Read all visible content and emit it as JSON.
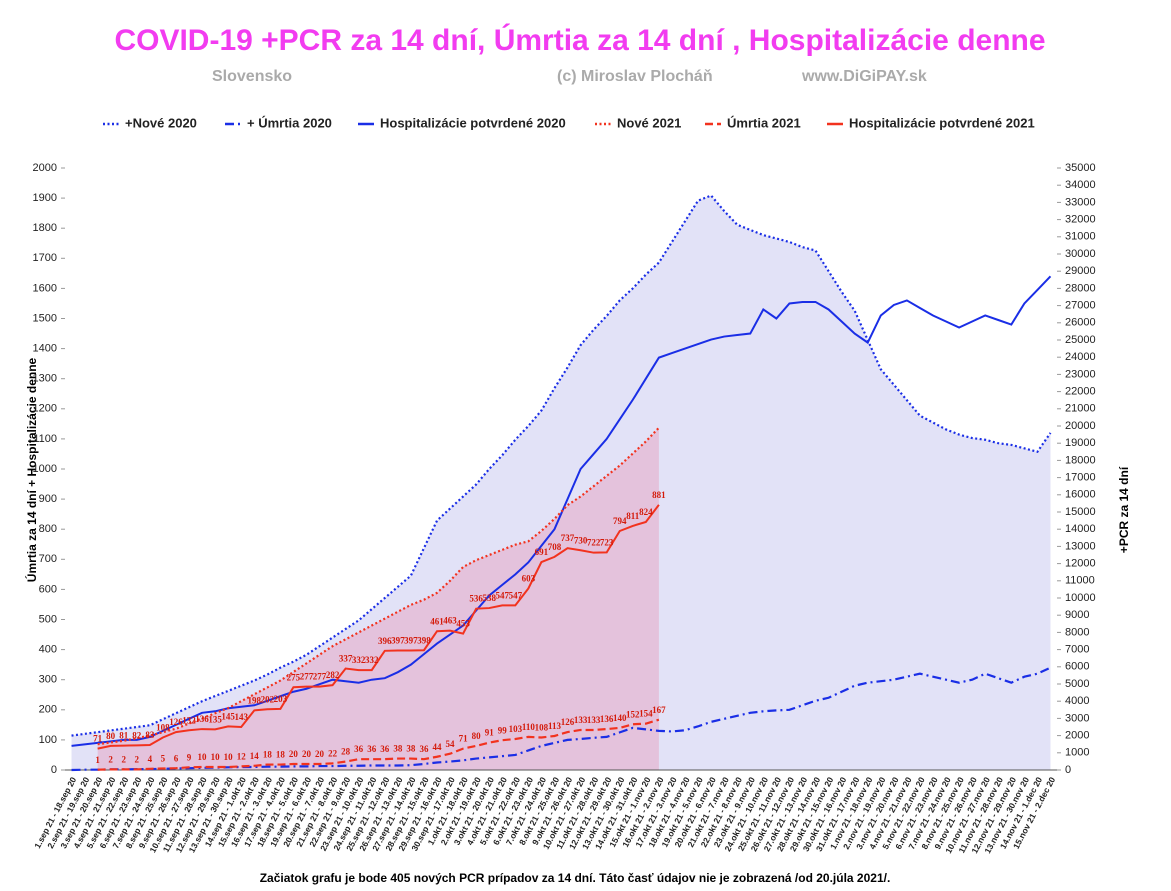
{
  "chart_data": {
    "type": "line",
    "title": "COVID-19   +PCR za 14 dní, Úmrtia za 14 dní , Hospitalizácie denne",
    "subtitles": [
      "Slovensko",
      "(c) Miroslav Plocháň",
      "www.DiGiPAY.sk"
    ],
    "ylabel": "Úmrtia za 14 dní + Hospitalizácie denne",
    "y2label": "+PCR za 14 dní",
    "note": "Začiatok grafu  je bode 405 nových PCR prípadov za 14 dní.  Táto časť údajov nie je zobrazená /od 20.júla 2021/.",
    "categories": [
      "1.sep 21 - 18.sep 20",
      "2.sep 21 - 19.sep 20",
      "3.sep 21 - 20.sep 20",
      "4.sep 21 - 21.sep 20",
      "5.sep 21 - 22.sep 20",
      "6.sep 21 - 23.sep 20",
      "7.sep 21 - 24.sep 20",
      "8.sep 21 - 25.sep 20",
      "9.sep 21 - 26.sep 20",
      "10.sep 21 - 27.sep 20",
      "11.sep 21 - 28.sep 20",
      "12.sep 21 - 29.sep 20",
      "13.sep 21 - 30.sep 20",
      "14.sep 21 - 1.okt 20",
      "15.sep 21 - 2.okt 20",
      "16.sep 21 - 3.okt 20",
      "17.sep 21 - 4.okt 20",
      "18.sep 21 - 5.okt 20",
      "19.sep 21 - 6.okt 20",
      "20.sep 21 - 7.okt 20",
      "21.sep 21 - 8.okt 20",
      "22.sep 21 - 9.okt 20",
      "23.sep 21 - 10.okt 20",
      "24.sep 21 - 11.okt 20",
      "25.sep 21 - 12.okt 20",
      "26.sep 21 - 13.okt 20",
      "27.sep 21 - 14.okt 20",
      "28.sep 21 - 15.okt 20",
      "29.sep 21 - 16.okt 20",
      "30.sep 21 - 17.okt 20",
      "1.okt 21 - 18.okt 20",
      "2.okt 21 - 19.okt 20",
      "3.okt 21 - 20.okt 20",
      "4.okt 21 - 21.okt 20",
      "5.okt 21 - 22.okt 20",
      "6.okt 21 - 23.okt 20",
      "7.okt 21 - 24.okt 20",
      "8.okt 21 - 25.okt 20",
      "9.okt 21 - 26.okt 20",
      "10.okt 21 - 27.okt 20",
      "11.okt 21 - 28.okt 20",
      "12.okt 21 - 29.okt 20",
      "13.okt 21 - 30.okt 20",
      "14.okt 21 - 31.okt 20",
      "15.okt 21 - 1.nov 20",
      "16.okt 21 - 2.nov 20",
      "17.okt 21 - 3.nov 20",
      "18.okt 21 - 4.nov 20",
      "19.okt 21 - 5.nov 20",
      "20.okt 21 - 6.nov 20",
      "21.okt 21 - 7.nov 20",
      "22.okt 21 - 8.nov 20",
      "23.okt 21 - 9.nov 20",
      "24.okt 21 - 10.nov 20",
      "25.okt 21 - 11.nov 20",
      "26.okt 21 - 12.nov 20",
      "27.okt 21 - 13.nov 20",
      "28.okt 21 - 14.nov 20",
      "29.okt 21 - 15.nov 20",
      "30.okt 21 - 16.nov 20",
      "31.okt 21 - 17.nov 20",
      "1.nov 21 - 18.nov 20",
      "2.nov 21 - 19.nov 20",
      "3.nov 21 - 20.nov 20",
      "4.nov 21 - 21.nov 20",
      "5.nov 21 - 22.nov 20",
      "6.nov 21 - 23.nov 20",
      "7.nov 21 - 24.nov 20",
      "8.nov 21 - 25.nov 20",
      "9.nov 21 - 26.nov 20",
      "10.nov 21 - 27.nov 20",
      "11.nov 21 - 28.nov 20",
      "12.nov 21 - 29.nov 20",
      "13.nov 21 - 30.nov 20",
      "14.nov 21 - 1.dec 20",
      "15.nov 21 - 2.dec 20"
    ],
    "series": [
      {
        "name": "+Nové 2020",
        "color": "#1a2ee6",
        "style": "dotted",
        "axis": "y2",
        "area": "rgba(110,110,215,0.2)",
        "values": [
          2000,
          2100,
          2200,
          2300,
          2400,
          2500,
          2600,
          2950,
          3300,
          3650,
          4000,
          4300,
          4600,
          4900,
          5200,
          5550,
          5950,
          6300,
          6700,
          7200,
          7700,
          8200,
          8700,
          9350,
          10000,
          10650,
          11300,
          12900,
          14500,
          15200,
          15900,
          16600,
          17500,
          18300,
          19200,
          20000,
          20900,
          22200,
          23400,
          24700,
          25600,
          26400,
          27300,
          28000,
          28800,
          29500,
          30700,
          31900,
          33100,
          33400,
          32500,
          31700,
          31400,
          31100,
          30900,
          30700,
          30400,
          30200,
          29000,
          27800,
          26700,
          25000,
          23300,
          22400,
          21500,
          20600,
          20200,
          19800,
          19500,
          19300,
          19200,
          19000,
          18900,
          18700,
          18500,
          19600
        ]
      },
      {
        "name": "+ Úmrtia 2020",
        "color": "#1a2ee6",
        "style": "dashdot",
        "values": [
          0,
          1,
          1,
          2,
          2,
          3,
          3,
          4,
          5,
          6,
          7,
          8,
          9,
          10,
          10,
          11,
          11,
          12,
          12,
          13,
          13,
          14,
          14,
          15,
          15,
          15,
          16,
          20,
          25,
          28,
          32,
          38,
          42,
          46,
          50,
          65,
          80,
          90,
          100,
          103,
          107,
          110,
          125,
          140,
          135,
          130,
          128,
          132,
          145,
          160,
          170,
          180,
          190,
          195,
          198,
          200,
          215,
          230,
          240,
          260,
          280,
          290,
          295,
          300,
          310,
          320,
          310,
          300,
          290,
          300,
          320,
          305,
          290,
          310,
          320,
          340
        ]
      },
      {
        "name": "Hospitalizácie potvrdené 2020",
        "color": "#1a2ee6",
        "style": "solid",
        "values": [
          80,
          85,
          90,
          95,
          100,
          100,
          110,
          130,
          150,
          170,
          190,
          195,
          205,
          210,
          215,
          230,
          245,
          260,
          270,
          285,
          300,
          295,
          290,
          300,
          305,
          325,
          350,
          385,
          420,
          450,
          480,
          530,
          580,
          615,
          650,
          690,
          745,
          800,
          900,
          1000,
          1050,
          1100,
          1165,
          1230,
          1300,
          1370,
          1385,
          1400,
          1415,
          1430,
          1440,
          1445,
          1450,
          1530,
          1500,
          1550,
          1555,
          1555,
          1530,
          1490,
          1450,
          1420,
          1510,
          1545,
          1560,
          1535,
          1510,
          1490,
          1470,
          1490,
          1510,
          1495,
          1480,
          1550,
          1595,
          1640
        ]
      },
      {
        "name": "Nové 2021",
        "color": "#f2321e",
        "style": "dotted",
        "axis": "y2",
        "area": "rgba(235,110,150,0.28)",
        "values": [
          null,
          null,
          1500,
          1600,
          1700,
          1850,
          2000,
          2200,
          2400,
          2700,
          3000,
          3300,
          3600,
          4000,
          4400,
          4800,
          5200,
          5700,
          6200,
          6700,
          7200,
          7600,
          8000,
          8400,
          8800,
          9200,
          9600,
          9900,
          10300,
          11000,
          11800,
          12200,
          12500,
          12800,
          13100,
          13300,
          13900,
          14600,
          15400,
          15900,
          16500,
          17100,
          17700,
          18400,
          19100,
          19900,
          null,
          null,
          null,
          null,
          null,
          null,
          null,
          null,
          null,
          null,
          null,
          null,
          null,
          null,
          null,
          null,
          null,
          null,
          null,
          null,
          null,
          null,
          null,
          null,
          null,
          null,
          null,
          null,
          null,
          null
        ]
      },
      {
        "name": "Úmrtia 2021",
        "color": "#f2321e",
        "style": "dashed",
        "data_labels": true,
        "values": [
          null,
          null,
          1,
          2,
          2,
          2,
          4,
          5,
          6,
          9,
          10,
          10,
          10,
          12,
          14,
          18,
          18,
          20,
          20,
          20,
          22,
          28,
          36,
          36,
          36,
          38,
          38,
          36,
          44,
          54,
          71,
          80,
          91,
          99,
          103,
          110,
          108,
          113,
          126,
          133,
          133,
          136,
          140,
          152,
          154,
          167,
          null,
          null,
          null,
          null,
          null,
          null,
          null,
          null,
          null,
          null,
          null,
          null,
          null,
          null,
          null,
          null,
          null,
          null,
          null,
          null,
          null,
          null,
          null,
          null,
          null,
          null,
          null,
          null,
          null,
          null
        ]
      },
      {
        "name": "Hospitalizácie potvrdené 2021",
        "color": "#f2321e",
        "style": "solid",
        "data_labels": true,
        "values": [
          null,
          null,
          71,
          80,
          81,
          82,
          83,
          108,
          126,
          132,
          136,
          135,
          145,
          143,
          198,
          202,
          203,
          275,
          277,
          277,
          282,
          337,
          332,
          332,
          396,
          397,
          397,
          398,
          461,
          463,
          453,
          536,
          538,
          547,
          547,
          603,
          691,
          708,
          737,
          730,
          722,
          723,
          794,
          811,
          824,
          881,
          null,
          null,
          null,
          null,
          null,
          null,
          null,
          null,
          null,
          null,
          null,
          null,
          null,
          null,
          null,
          null,
          null,
          null,
          null,
          null,
          null,
          null,
          null,
          null,
          null,
          null,
          null,
          null,
          null,
          null
        ]
      }
    ],
    "ylim": [
      0,
      2000
    ],
    "yticks": [
      0,
      100,
      200,
      300,
      400,
      500,
      600,
      700,
      800,
      900,
      1000,
      1100,
      1200,
      1300,
      1400,
      1500,
      1600,
      1700,
      1800,
      1900,
      2000
    ],
    "y2lim": [
      0,
      35000
    ],
    "y2ticks": [
      0,
      1000,
      2000,
      3000,
      4000,
      5000,
      6000,
      7000,
      8000,
      9000,
      10000,
      11000,
      12000,
      13000,
      14000,
      15000,
      16000,
      17000,
      18000,
      19000,
      20000,
      21000,
      22000,
      23000,
      24000,
      25000,
      26000,
      27000,
      28000,
      29000,
      30000,
      31000,
      32000,
      33000,
      34000,
      35000
    ],
    "grid": false,
    "legend": "top"
  }
}
